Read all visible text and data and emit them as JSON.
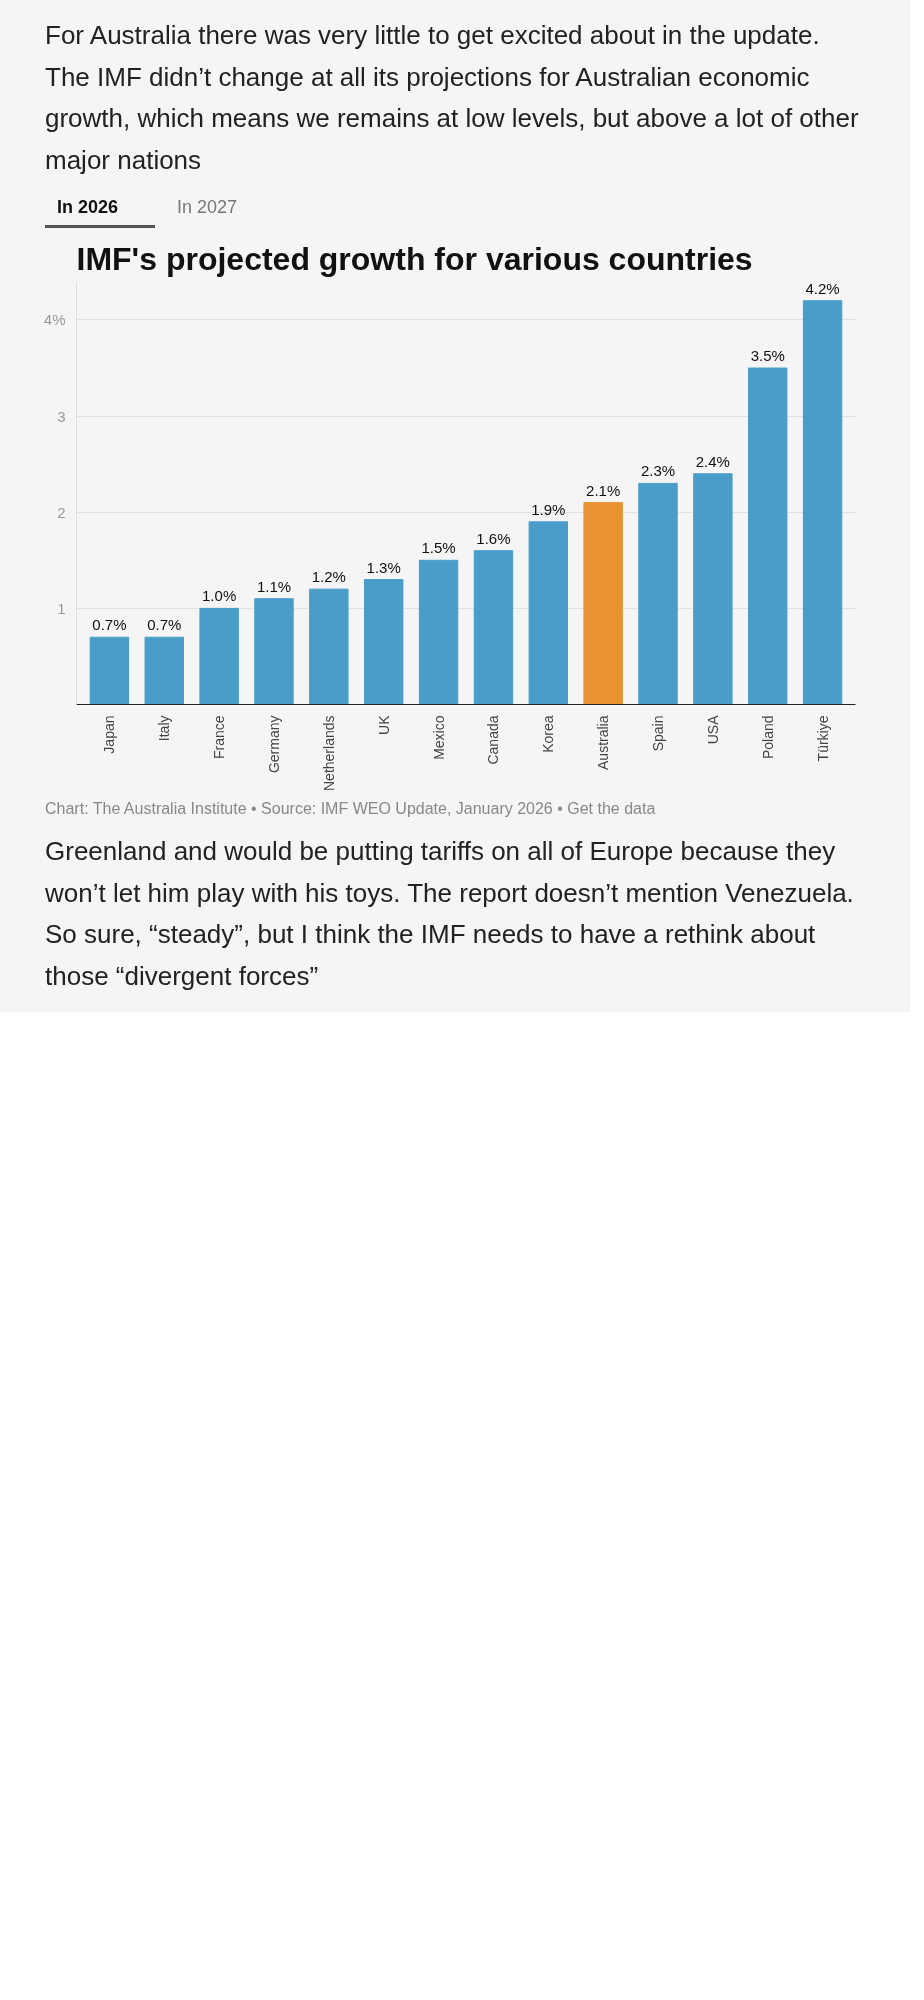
{
  "chart_data": {
    "type": "bar",
    "title": "IMF's projected growth for various countries",
    "categories": [
      "Japan",
      "Italy",
      "France",
      "Germany",
      "Netherlands",
      "UK",
      "Mexico",
      "Canada",
      "Korea",
      "Australia",
      "Spain",
      "USA",
      "Poland",
      "Türkiye"
    ],
    "values": [
      0.7,
      0.7,
      1.0,
      1.1,
      1.2,
      1.3,
      1.5,
      1.6,
      1.9,
      2.1,
      2.3,
      2.4,
      3.5,
      4.2
    ],
    "colors": [
      "#4a9dc9",
      "#4a9dc9",
      "#4a9dc9",
      "#4a9dc9",
      "#4a9dc9",
      "#4a9dc9",
      "#4a9dc9",
      "#4a9dc9",
      "#4a9dc9",
      "#e99234",
      "#4a9dc9",
      "#4a9dc9",
      "#4a9dc9",
      "#4a9dc9"
    ],
    "value_labels": [
      "0.7%",
      "0.7%",
      "1.0%",
      "1.1%",
      "1.2%",
      "1.3%",
      "1.5%",
      "1.6%",
      "1.9%",
      "2.1%",
      "2.3%",
      "2.4%",
      "3.5%",
      "4.2%"
    ],
    "ylim": [
      0,
      4.4
    ],
    "yticks": [
      {
        "value": 1,
        "label": "1"
      },
      {
        "value": 2,
        "label": "2"
      },
      {
        "value": 3,
        "label": "3"
      },
      {
        "value": 4,
        "label": "4%"
      }
    ],
    "grid": "y",
    "annotations": [
      "For Australia there was very little to get excited about in the update. The IMF didn’t change at all its projections for Australian economic growth, which means we remains at low levels, but above a lot of other major nations",
      "In 2026",
      "In 2027",
      "Chart: The Australia Institute • Source: IMF WEO Update, January 2026 • Get the data",
      "Greenland and would be putting tariffs on all of Europe because they won’t let him play with his toys. The report doesn’t mention Venezuela. So sure, “steady”, but I think the IMF needs to have a rethink about those “divergent forces”"
    ]
  }
}
